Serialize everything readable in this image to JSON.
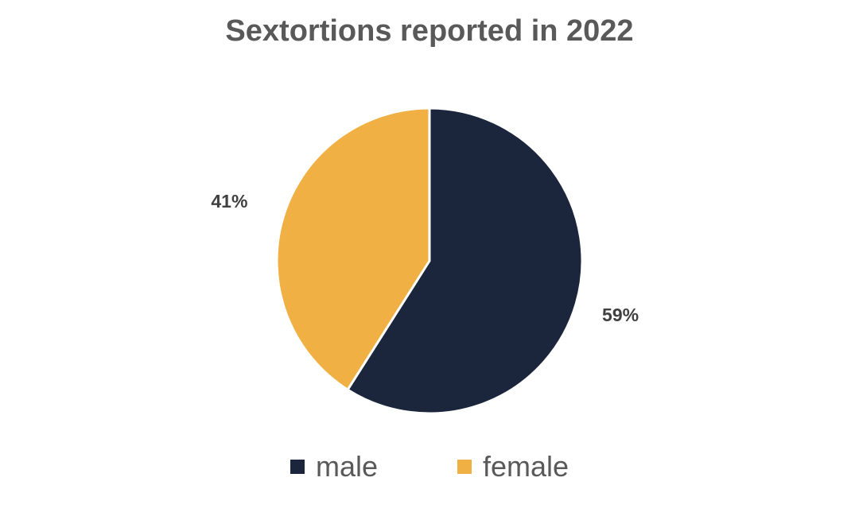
{
  "chart_data": {
    "type": "pie",
    "title": "Sextortions reported in 2022",
    "categories": [
      "male",
      "female"
    ],
    "values": [
      59,
      41
    ],
    "data_labels": [
      "59%",
      "41%"
    ],
    "colors": [
      "#1b263d",
      "#f0b043"
    ],
    "legend_position": "bottom"
  }
}
